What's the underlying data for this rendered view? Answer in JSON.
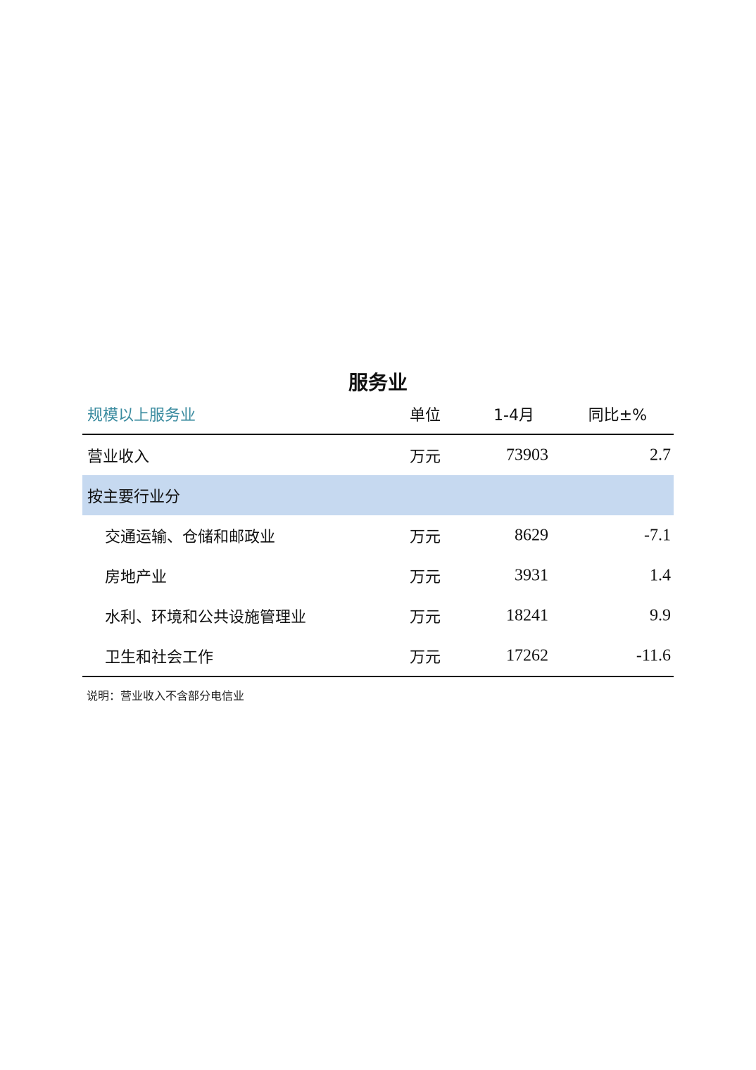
{
  "title": "服务业",
  "header": {
    "name": "规模以上服务业",
    "unit": "单位",
    "period": "1-4月",
    "yoy": "同比±%"
  },
  "rows": [
    {
      "name": "营业收入",
      "unit": "万元",
      "value": "73903",
      "yoy": "2.7"
    },
    {
      "name": "按主要行业分",
      "unit": "",
      "value": "",
      "yoy": ""
    },
    {
      "name": "交通运输、仓储和邮政业",
      "unit": "万元",
      "value": "8629",
      "yoy": "-7.1"
    },
    {
      "name": "房地产业",
      "unit": "万元",
      "value": "3931",
      "yoy": "1.4"
    },
    {
      "name": "水利、环境和公共设施管理业",
      "unit": "万元",
      "value": "18241",
      "yoy": "9.9"
    },
    {
      "name": "卫生和社会工作",
      "unit": "万元",
      "value": "17262",
      "yoy": "-11.6"
    }
  ],
  "note": "说明：营业收入不含部分电信业",
  "colors": {
    "header_text": "#3a8b9f",
    "section_band": "#c6d9f0"
  }
}
